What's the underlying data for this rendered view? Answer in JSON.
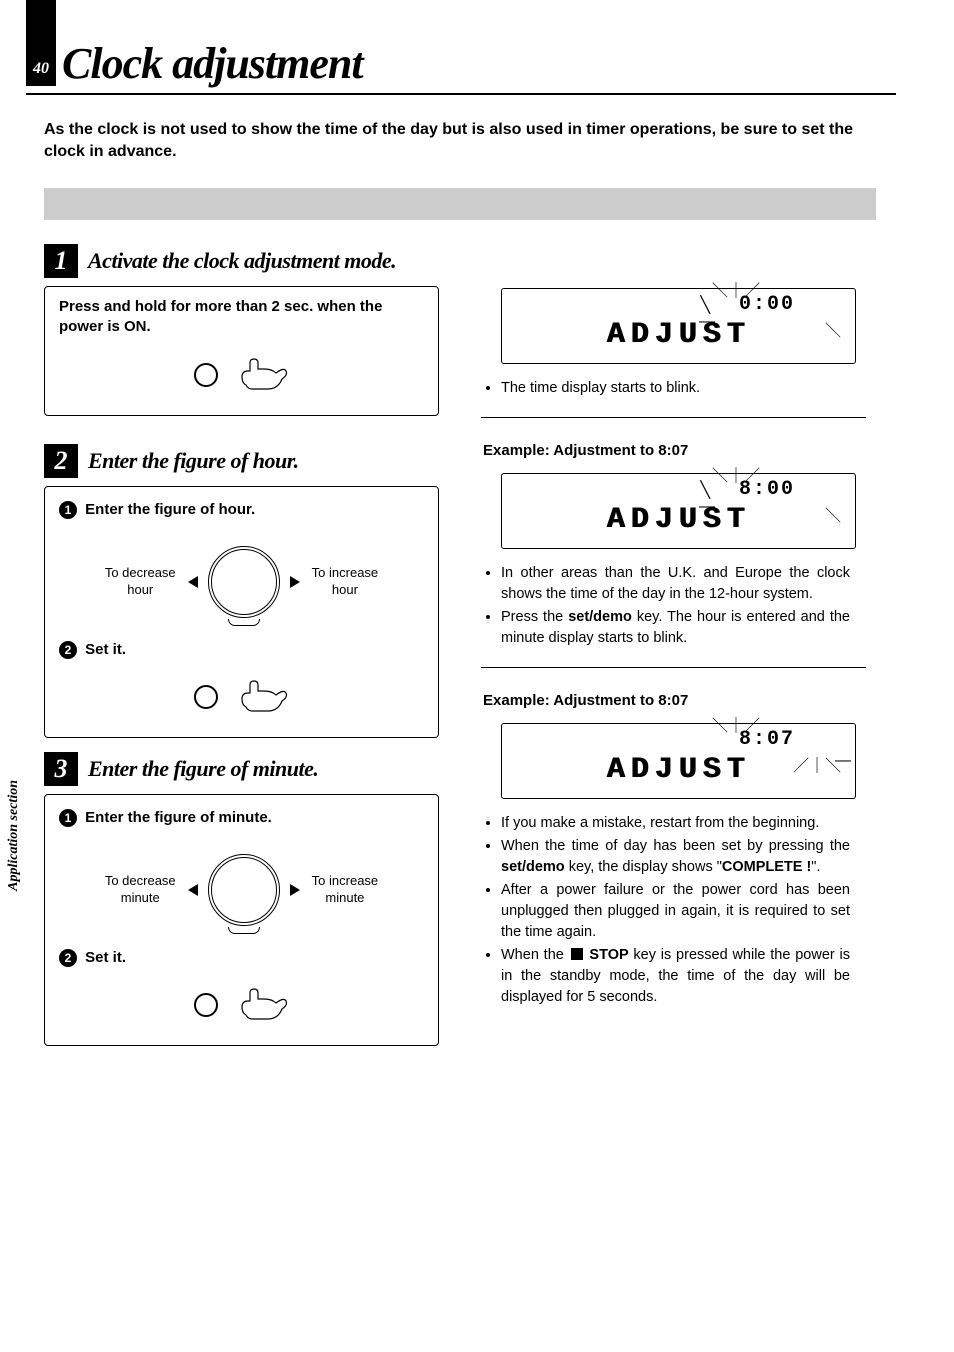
{
  "page_number": "40",
  "title": "Clock adjustment",
  "intro": "As the clock is not used to show the time of the day but is also used in timer operations, be sure to set the clock in advance.",
  "side_tab": "Application section",
  "steps": [
    {
      "num": "1",
      "title": "Activate the clock adjustment mode.",
      "panel": {
        "instruction": "Press and hold for more than 2 sec. when the power is ON."
      }
    },
    {
      "num": "2",
      "title": "Enter the figure of hour.",
      "panel": {
        "sub1_num": "1",
        "sub1_text": "Enter the figure of hour.",
        "dial_left": "To decrease\nhour",
        "dial_right": "To increase\nhour",
        "sub2_num": "2",
        "sub2_text": "Set it."
      }
    },
    {
      "num": "3",
      "title": "Enter the figure of minute.",
      "panel": {
        "sub1_num": "1",
        "sub1_text": "Enter the figure of minute.",
        "dial_left": "To decrease\nminute",
        "dial_right": "To increase\nminute",
        "sub2_num": "2",
        "sub2_text": "Set it."
      }
    }
  ],
  "right": {
    "block1": {
      "disp_time": "0:00",
      "disp_word": "ADJUST",
      "bullets": [
        "The time display starts to blink."
      ]
    },
    "block2": {
      "header": "Example: Adjustment to 8:07",
      "disp_time": "8:00",
      "disp_word": "ADJUST",
      "bullets": [
        "In other areas than the U.K. and Europe the clock shows the time of the day in the 12-hour system.",
        "Press the <strong>set/demo</strong> key. The hour is entered and the minute display starts to blink."
      ]
    },
    "block3": {
      "header": "Example: Adjustment to 8:07",
      "disp_time": "8:07",
      "disp_word": "ADJUST",
      "bullets": [
        "If you make a mistake, restart from the beginning.",
        "When the time of day has been set by pressing the <strong>set/demo</strong> key, the display shows \"<strong>COMPLETE !</strong>\".",
        "After a power failure or the power cord has been unplugged then plugged in again, it is required to set the time again.",
        "When the <span class=\"stop-icon\"></span> <strong>STOP</strong> key is pressed while the power is in the standby mode, the time of the day will be displayed for 5 seconds."
      ]
    }
  }
}
